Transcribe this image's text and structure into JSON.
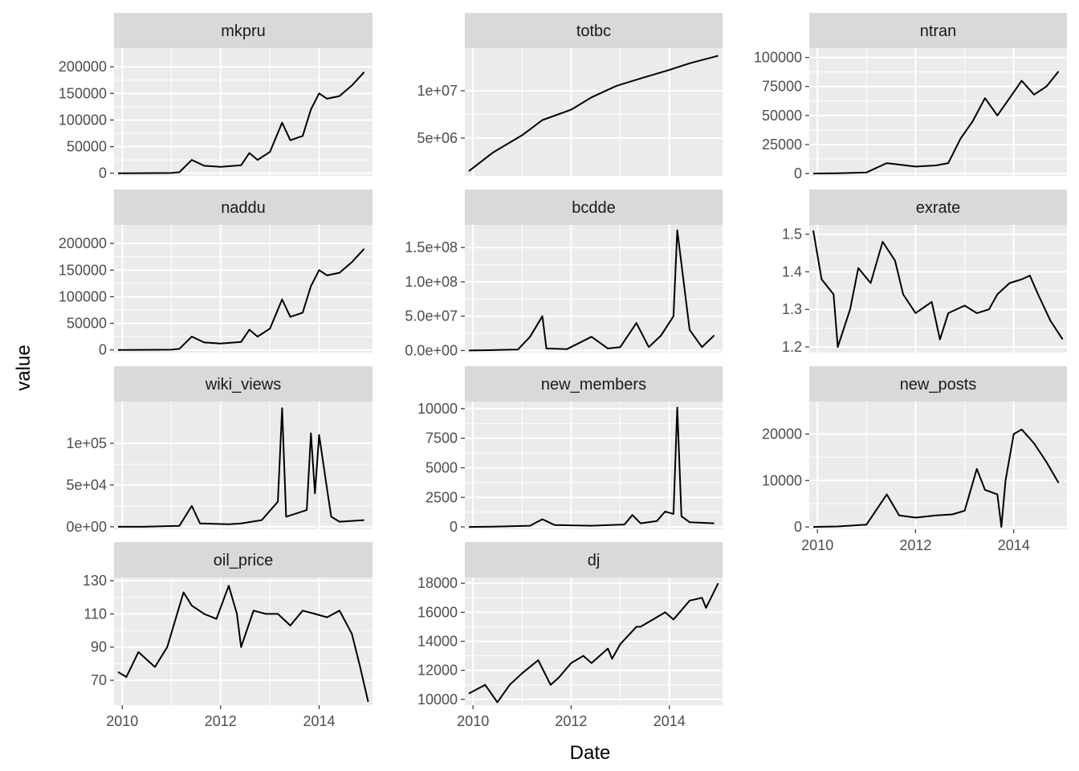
{
  "colors": {
    "panel_bg": "#ebebeb",
    "strip_bg": "#d9d9d9",
    "grid": "#ffffff",
    "line": "#000000",
    "tick_text": "#4d4d4d"
  },
  "chart_data": {
    "type": "line",
    "layout": "facet_wrap",
    "ncol": 3,
    "xlabel": "Date",
    "ylabel": "value",
    "x_ticks": [
      "2010",
      "2012",
      "2014"
    ],
    "x_range": [
      "2009-11-01",
      "2015-02-01"
    ],
    "panels": [
      {
        "name": "mkpru",
        "ylim": [
          -5000,
          235000
        ],
        "y_ticks": [
          0,
          50000,
          100000,
          150000,
          200000
        ],
        "y_tick_labels": [
          "0",
          "50000",
          "100000",
          "150000",
          "200000"
        ],
        "x": [
          "2009-12-01",
          "2010-06-01",
          "2011-01-01",
          "2011-03-01",
          "2011-06-01",
          "2011-09-01",
          "2012-01-01",
          "2012-06-01",
          "2012-08-01",
          "2012-10-01",
          "2013-01-01",
          "2013-04-01",
          "2013-06-01",
          "2013-09-01",
          "2013-11-01",
          "2014-01-01",
          "2014-03-01",
          "2014-06-01",
          "2014-09-01",
          "2014-12-01"
        ],
        "y": [
          0,
          200,
          500,
          2000,
          25000,
          14000,
          12000,
          15000,
          38000,
          25000,
          40000,
          95000,
          62000,
          70000,
          120000,
          150000,
          140000,
          145000,
          165000,
          190000
        ]
      },
      {
        "name": "totbc",
        "ylim": [
          1000000,
          14500000
        ],
        "y_ticks": [
          5000000,
          10000000
        ],
        "y_tick_labels": [
          "5e+06",
          "1e+07"
        ],
        "x": [
          "2009-12-01",
          "2010-06-01",
          "2011-01-01",
          "2011-06-01",
          "2012-01-01",
          "2012-06-01",
          "2012-12-01",
          "2013-06-01",
          "2014-01-01",
          "2014-06-01",
          "2014-12-31"
        ],
        "y": [
          1500000,
          3500000,
          5300000,
          6900000,
          8000000,
          9300000,
          10500000,
          11300000,
          12200000,
          12900000,
          13700000
        ]
      },
      {
        "name": "ntran",
        "ylim": [
          -2000,
          108000
        ],
        "y_ticks": [
          0,
          25000,
          50000,
          75000,
          100000
        ],
        "y_tick_labels": [
          "0",
          "25000",
          "50000",
          "75000",
          "100000"
        ],
        "x": [
          "2009-12-01",
          "2010-06-01",
          "2011-01-01",
          "2011-06-01",
          "2012-01-01",
          "2012-06-01",
          "2012-09-01",
          "2012-12-01",
          "2013-03-01",
          "2013-06-01",
          "2013-09-01",
          "2013-12-01",
          "2014-03-01",
          "2014-06-01",
          "2014-09-01",
          "2014-12-01"
        ],
        "y": [
          0,
          300,
          1000,
          9000,
          6000,
          7000,
          9000,
          30000,
          45000,
          65000,
          50000,
          65000,
          80000,
          68000,
          75000,
          88000
        ]
      },
      {
        "name": "naddu",
        "ylim": [
          -5000,
          235000
        ],
        "y_ticks": [
          0,
          50000,
          100000,
          150000,
          200000
        ],
        "y_tick_labels": [
          "0",
          "50000",
          "100000",
          "150000",
          "200000"
        ],
        "x": [
          "2009-12-01",
          "2010-06-01",
          "2011-01-01",
          "2011-03-01",
          "2011-06-01",
          "2011-09-01",
          "2012-01-01",
          "2012-06-01",
          "2012-08-01",
          "2012-10-01",
          "2013-01-01",
          "2013-04-01",
          "2013-06-01",
          "2013-09-01",
          "2013-11-01",
          "2014-01-01",
          "2014-03-01",
          "2014-06-01",
          "2014-09-01",
          "2014-12-01"
        ],
        "y": [
          0,
          200,
          500,
          2000,
          25000,
          14000,
          12000,
          15000,
          38000,
          25000,
          40000,
          95000,
          62000,
          70000,
          120000,
          150000,
          140000,
          145000,
          165000,
          190000
        ]
      },
      {
        "name": "bcdde",
        "ylim": [
          -3000000,
          183000000
        ],
        "y_ticks": [
          0,
          50000000,
          100000000,
          150000000
        ],
        "y_tick_labels": [
          "0.0e+00",
          "5.0e+07",
          "1.0e+08",
          "1.5e+08"
        ],
        "x": [
          "2009-12-01",
          "2010-05-01",
          "2010-12-01",
          "2011-03-01",
          "2011-06-01",
          "2011-07-01",
          "2011-12-01",
          "2012-06-01",
          "2012-10-01",
          "2013-01-01",
          "2013-05-01",
          "2013-08-01",
          "2013-11-01",
          "2014-02-01",
          "2014-03-01",
          "2014-06-01",
          "2014-09-01",
          "2014-12-01"
        ],
        "y": [
          0,
          500000,
          1500000,
          20000000,
          50000000,
          3000000,
          2000000,
          20000000,
          3000000,
          5000000,
          40000000,
          5000000,
          22000000,
          50000000,
          175000000,
          30000000,
          5000000,
          22000000
        ]
      },
      {
        "name": "exrate",
        "ylim": [
          1.185,
          1.525
        ],
        "y_ticks": [
          1.2,
          1.3,
          1.4,
          1.5
        ],
        "y_tick_labels": [
          "1.2",
          "1.3",
          "1.4",
          "1.5"
        ],
        "x": [
          "2009-12-01",
          "2010-02-01",
          "2010-05-01",
          "2010-06-01",
          "2010-09-01",
          "2010-11-01",
          "2011-02-01",
          "2011-05-01",
          "2011-08-01",
          "2011-10-01",
          "2012-01-01",
          "2012-05-01",
          "2012-07-01",
          "2012-09-01",
          "2013-01-01",
          "2013-04-01",
          "2013-07-01",
          "2013-09-01",
          "2013-12-01",
          "2014-03-01",
          "2014-05-01",
          "2014-07-01",
          "2014-10-01",
          "2014-12-31"
        ],
        "y": [
          1.51,
          1.38,
          1.34,
          1.2,
          1.3,
          1.41,
          1.37,
          1.48,
          1.43,
          1.34,
          1.29,
          1.32,
          1.22,
          1.29,
          1.31,
          1.29,
          1.3,
          1.34,
          1.37,
          1.38,
          1.39,
          1.34,
          1.27,
          1.22
        ]
      },
      {
        "name": "wiki_views",
        "ylim": [
          -3000,
          150000
        ],
        "y_ticks": [
          0,
          50000,
          100000
        ],
        "y_tick_labels": [
          "0e+00",
          "5e+04",
          "1e+05"
        ],
        "x": [
          "2009-12-01",
          "2010-06-01",
          "2011-03-01",
          "2011-06-01",
          "2011-08-01",
          "2012-03-01",
          "2012-06-01",
          "2012-11-01",
          "2013-03-01",
          "2013-04-01",
          "2013-05-01",
          "2013-10-01",
          "2013-11-01",
          "2013-12-01",
          "2014-01-01",
          "2014-03-01",
          "2014-04-01",
          "2014-06-01",
          "2014-12-01"
        ],
        "y": [
          0,
          0,
          1000,
          25000,
          4000,
          3000,
          4000,
          8000,
          30000,
          142000,
          12000,
          20000,
          112000,
          40000,
          110000,
          45000,
          12000,
          6000,
          8000
        ]
      },
      {
        "name": "new_members",
        "ylim": [
          -200,
          10600
        ],
        "y_ticks": [
          0,
          2500,
          5000,
          7500,
          10000
        ],
        "y_tick_labels": [
          "0",
          "2500",
          "5000",
          "7500",
          "10000"
        ],
        "x": [
          "2009-12-01",
          "2010-06-01",
          "2011-03-01",
          "2011-06-01",
          "2011-09-01",
          "2012-06-01",
          "2013-02-01",
          "2013-04-01",
          "2013-06-01",
          "2013-10-01",
          "2013-12-01",
          "2014-02-01",
          "2014-03-01",
          "2014-04-01",
          "2014-06-01",
          "2014-12-01"
        ],
        "y": [
          0,
          20,
          100,
          650,
          150,
          100,
          200,
          1000,
          300,
          500,
          1300,
          1100,
          10100,
          900,
          400,
          300
        ]
      },
      {
        "name": "new_posts",
        "ylim": [
          -500,
          27000
        ],
        "y_ticks": [
          0,
          10000,
          20000
        ],
        "y_tick_labels": [
          "0",
          "10000",
          "20000"
        ],
        "x": [
          "2009-12-01",
          "2010-06-01",
          "2011-01-01",
          "2011-06-01",
          "2011-09-01",
          "2012-01-01",
          "2012-06-01",
          "2012-10-01",
          "2013-01-01",
          "2013-04-01",
          "2013-06-01",
          "2013-09-01",
          "2013-10-01",
          "2013-11-01",
          "2014-01-01",
          "2014-03-01",
          "2014-06-01",
          "2014-09-01",
          "2014-12-01"
        ],
        "y": [
          0,
          100,
          500,
          7000,
          2500,
          2000,
          2500,
          2700,
          3500,
          12500,
          8000,
          7000,
          0,
          10000,
          20000,
          21000,
          18000,
          14000,
          9500
        ]
      },
      {
        "name": "oil_price",
        "ylim": [
          55,
          132
        ],
        "y_ticks": [
          70,
          90,
          110,
          130
        ],
        "y_tick_labels": [
          "70",
          "90",
          "110",
          "130"
        ],
        "x": [
          "2009-12-01",
          "2010-02-01",
          "2010-05-01",
          "2010-09-01",
          "2010-12-01",
          "2011-04-01",
          "2011-06-01",
          "2011-09-01",
          "2011-12-01",
          "2012-03-01",
          "2012-05-01",
          "2012-06-01",
          "2012-09-01",
          "2012-12-01",
          "2013-03-01",
          "2013-06-01",
          "2013-09-01",
          "2013-12-01",
          "2014-03-01",
          "2014-06-01",
          "2014-09-01",
          "2014-11-01",
          "2014-12-31"
        ],
        "y": [
          75,
          72,
          87,
          78,
          90,
          123,
          115,
          110,
          107,
          127,
          110,
          90,
          112,
          110,
          110,
          103,
          112,
          110,
          108,
          112,
          98,
          78,
          57
        ]
      },
      {
        "name": "dj",
        "ylim": [
          9600,
          18400
        ],
        "y_ticks": [
          10000,
          12000,
          14000,
          16000,
          18000
        ],
        "y_tick_labels": [
          "10000",
          "12000",
          "14000",
          "16000",
          "18000"
        ],
        "x": [
          "2009-12-01",
          "2010-04-01",
          "2010-07-01",
          "2010-10-01",
          "2011-01-01",
          "2011-05-01",
          "2011-08-01",
          "2011-10-01",
          "2012-01-01",
          "2012-04-01",
          "2012-06-01",
          "2012-10-01",
          "2012-11-01",
          "2013-01-01",
          "2013-05-01",
          "2013-06-01",
          "2013-09-01",
          "2013-12-01",
          "2014-02-01",
          "2014-06-01",
          "2014-09-01",
          "2014-10-01",
          "2014-12-31"
        ],
        "y": [
          10400,
          11000,
          9800,
          11000,
          11800,
          12700,
          11000,
          11500,
          12500,
          13000,
          12500,
          13500,
          12800,
          13800,
          15000,
          15000,
          15500,
          16000,
          15500,
          16800,
          17000,
          16300,
          18000
        ]
      }
    ]
  }
}
